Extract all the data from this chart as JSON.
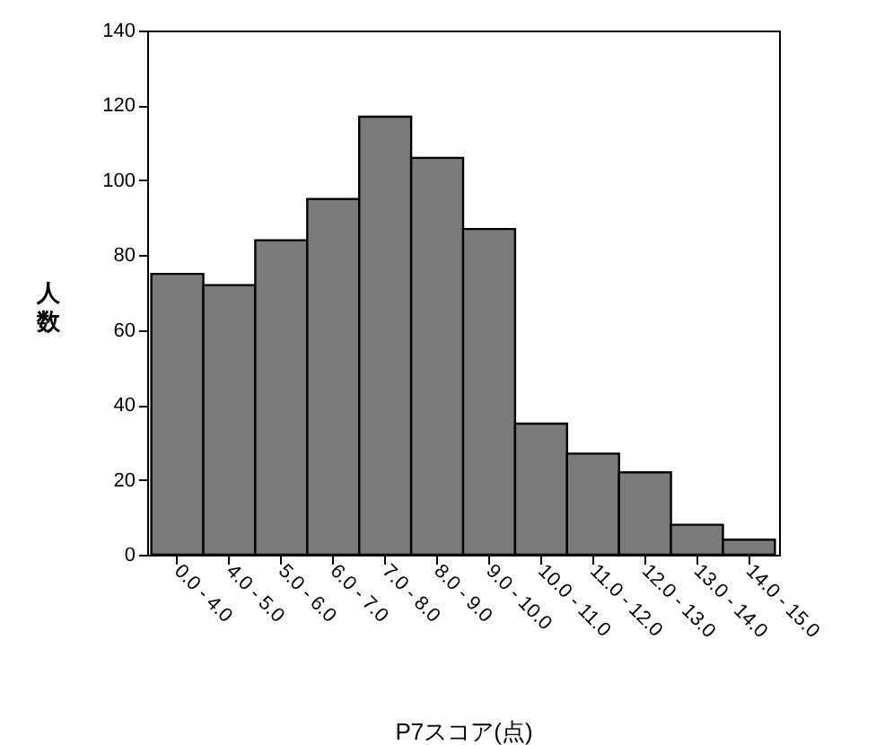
{
  "chart_data": {
    "type": "bar",
    "xlabel": "P7スコア(点)",
    "ylabel": "人数",
    "categories": [
      "0.0 - 4.0",
      "4.0 - 5.0",
      "5.0 - 6.0",
      "6.0 - 7.0",
      "7.0 - 8.0",
      "8.0 - 9.0",
      "9.0 - 10.0",
      "10.0 - 11.0",
      "11.0 - 12.0",
      "12.0 - 13.0",
      "13.0 - 14.0",
      "14.0 - 15.0"
    ],
    "values": [
      75,
      72,
      84,
      95,
      117,
      106,
      87,
      35,
      27,
      22,
      8,
      4
    ],
    "color": "#7a7a7a",
    "ylim": [
      0,
      140
    ],
    "yticks": [
      0,
      20,
      40,
      60,
      80,
      100,
      120,
      140
    ],
    "grid": false
  }
}
